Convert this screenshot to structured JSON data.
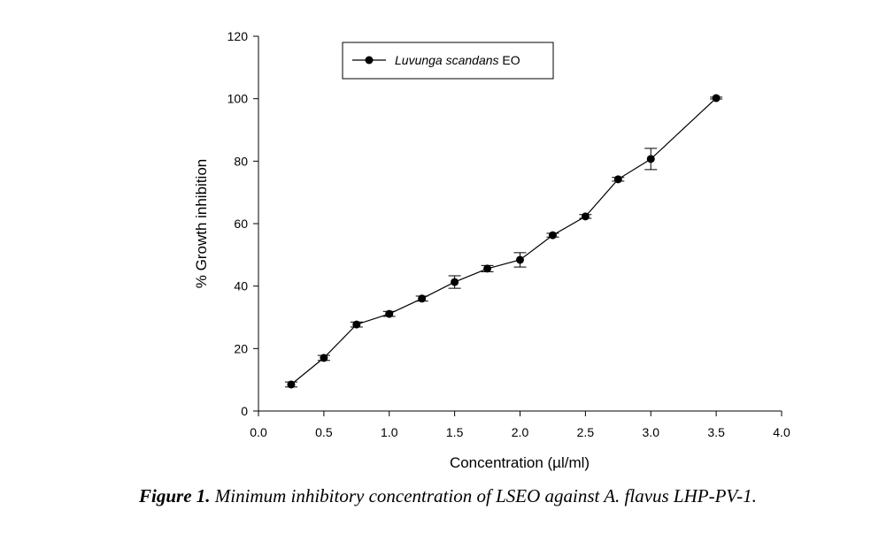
{
  "chart_data": {
    "type": "line",
    "title": "",
    "xlabel": "Concentration (µl/ml)",
    "ylabel": "% Growth inhibition",
    "xlim": [
      0.0,
      4.0
    ],
    "ylim": [
      0,
      120
    ],
    "x_ticks": [
      "0.0",
      "0.5",
      "1.0",
      "1.5",
      "2.0",
      "2.5",
      "3.0",
      "3.5",
      "4.0"
    ],
    "y_ticks": [
      "0",
      "20",
      "40",
      "60",
      "80",
      "100",
      "120"
    ],
    "grid": false,
    "legend_position": "top-left",
    "series": [
      {
        "name": "Luvunga scandans EO",
        "name_italic_part": "Luvunga scandans",
        "name_suffix": " EO",
        "marker": "filled-circle",
        "color": "#000000",
        "x": [
          0.25,
          0.5,
          0.75,
          1.0,
          1.25,
          1.5,
          1.75,
          2.0,
          2.25,
          2.5,
          2.75,
          3.0,
          3.5
        ],
        "y": [
          8.5,
          17.0,
          27.7,
          31.1,
          36.0,
          41.3,
          45.6,
          48.4,
          56.3,
          62.3,
          74.2,
          80.7,
          100.2
        ],
        "error": [
          0.8,
          0.8,
          0.8,
          0.8,
          0.8,
          2.0,
          1.0,
          2.3,
          0.6,
          0.6,
          0.6,
          3.4,
          0.3
        ]
      }
    ]
  },
  "caption": {
    "label": "Figure 1.",
    "text": " Minimum inhibitory concentration of LSEO against A. flavus LHP-PV-1."
  }
}
